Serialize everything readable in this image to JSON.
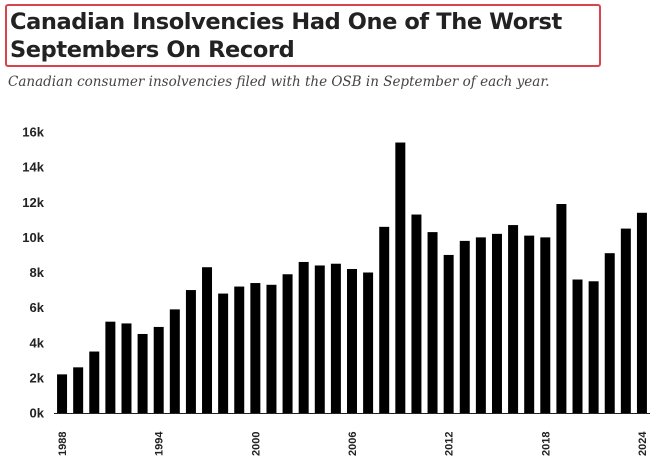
{
  "header": {
    "title": "Canadian Insolvencies Had One of The Worst Septembers On Record",
    "subtitle": "Canadian consumer insolvencies filed with the OSB in September of each year."
  },
  "colors": {
    "bar": "#000000",
    "title_border": "#d9434b",
    "axis": "#222222"
  },
  "chart_data": {
    "type": "bar",
    "title": "",
    "xlabel": "",
    "ylabel": "",
    "ylim": [
      0,
      16000
    ],
    "grid": false,
    "legend": "none",
    "y_ticks": [
      {
        "value": 0,
        "label": "0k"
      },
      {
        "value": 2000,
        "label": "2k"
      },
      {
        "value": 4000,
        "label": "4k"
      },
      {
        "value": 6000,
        "label": "6k"
      },
      {
        "value": 8000,
        "label": "8k"
      },
      {
        "value": 10000,
        "label": "10k"
      },
      {
        "value": 12000,
        "label": "12k"
      },
      {
        "value": 14000,
        "label": "14k"
      },
      {
        "value": 16000,
        "label": "16k"
      }
    ],
    "x_tick_labels": [
      "1988",
      "1994",
      "2000",
      "2006",
      "2012",
      "2018",
      "2024"
    ],
    "categories": [
      "1988",
      "1989",
      "1990",
      "1991",
      "1992",
      "1993",
      "1994",
      "1995",
      "1996",
      "1997",
      "1998",
      "1999",
      "2000",
      "2001",
      "2002",
      "2003",
      "2004",
      "2005",
      "2006",
      "2007",
      "2008",
      "2009",
      "2010",
      "2011",
      "2012",
      "2013",
      "2014",
      "2015",
      "2016",
      "2017",
      "2018",
      "2019",
      "2020",
      "2021",
      "2022",
      "2023",
      "2024"
    ],
    "values": [
      2200,
      2600,
      3500,
      5200,
      5100,
      4500,
      4900,
      5900,
      7000,
      8300,
      6800,
      7200,
      7400,
      7300,
      7900,
      8600,
      8400,
      8500,
      8200,
      8000,
      10600,
      15400,
      11300,
      10300,
      9000,
      9800,
      10000,
      10200,
      10700,
      10100,
      10000,
      11900,
      7600,
      7500,
      9100,
      10500,
      11400
    ]
  }
}
